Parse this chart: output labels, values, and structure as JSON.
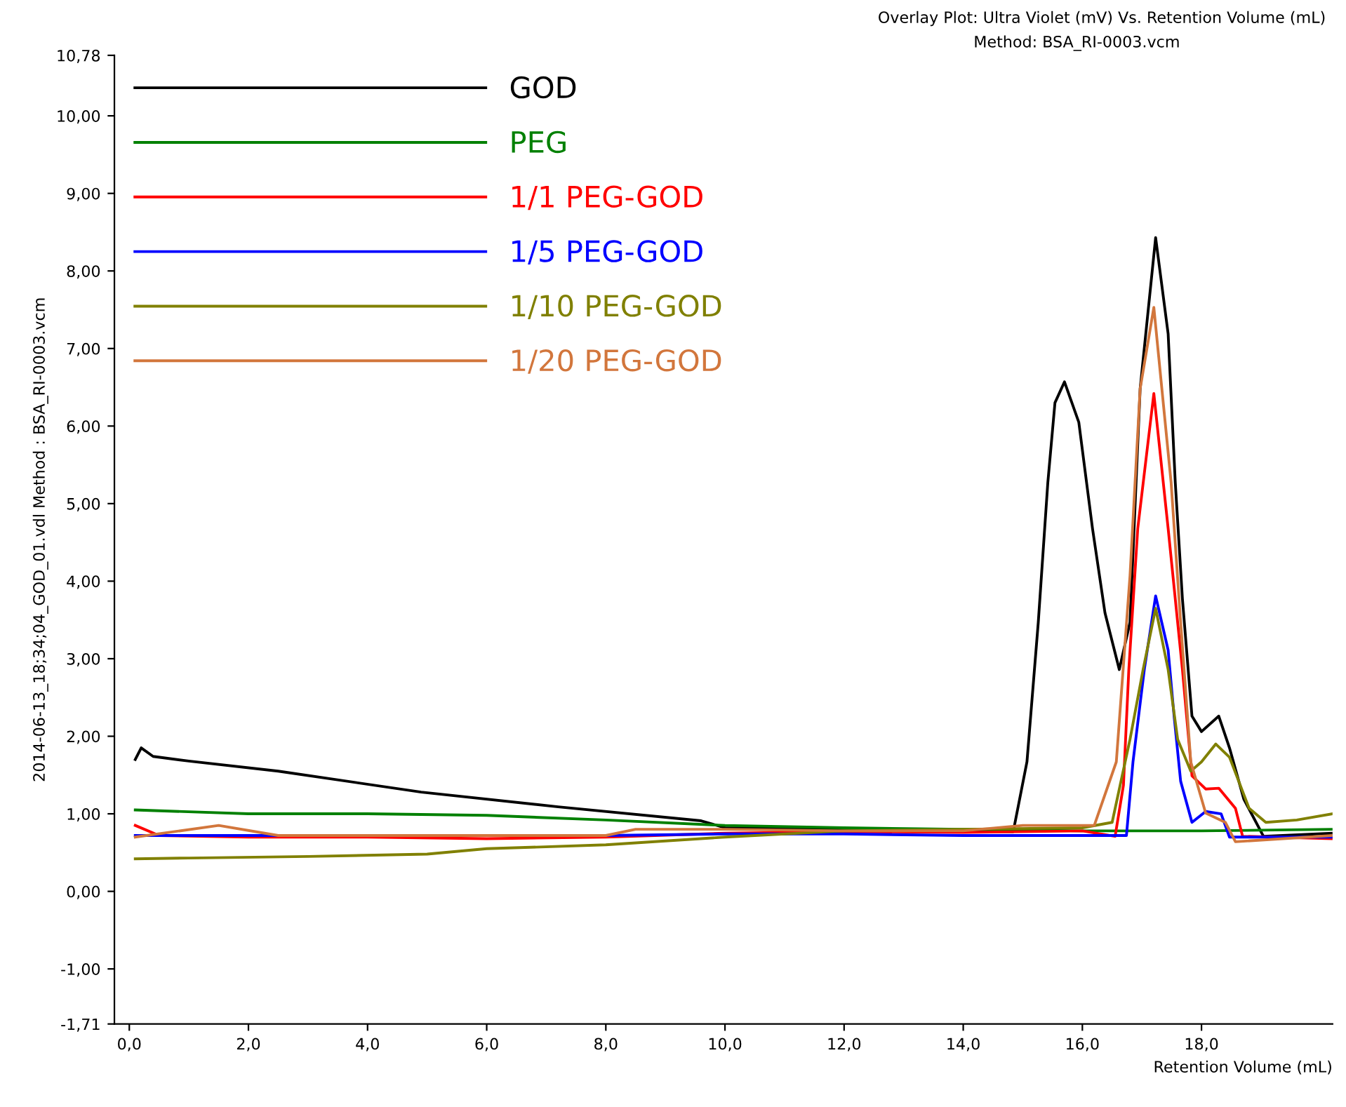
{
  "chart_data": {
    "type": "line",
    "title": "Overlay Plot: Ultra Violet (mV) Vs. Retention Volume (mL)",
    "subtitle": "Method: BSA_RI-0003.vcm",
    "xlabel": "Retention Volume (mL)",
    "ylabel": "2014-06-13_18;34;04_GOD_01.vdl Method : BSA_RI-0003.vcm",
    "xlim": [
      -0.25,
      20.2
    ],
    "ylim": [
      -1.71,
      10.78
    ],
    "xticks": [
      {
        "value": 0,
        "label": "0,0"
      },
      {
        "value": 2,
        "label": "2,0"
      },
      {
        "value": 4,
        "label": "4,0"
      },
      {
        "value": 6,
        "label": "6,0"
      },
      {
        "value": 8,
        "label": "8,0"
      },
      {
        "value": 10,
        "label": "10,0"
      },
      {
        "value": 12,
        "label": "12,0"
      },
      {
        "value": 14,
        "label": "14,0"
      },
      {
        "value": 16,
        "label": "16,0"
      },
      {
        "value": 18,
        "label": "18,0"
      }
    ],
    "yticks": [
      {
        "value": -1.71,
        "label": "-1,71"
      },
      {
        "value": -1,
        "label": "-1,00"
      },
      {
        "value": 0,
        "label": "0,00"
      },
      {
        "value": 1,
        "label": "1,00"
      },
      {
        "value": 2,
        "label": "2,00"
      },
      {
        "value": 3,
        "label": "3,00"
      },
      {
        "value": 4,
        "label": "4,00"
      },
      {
        "value": 5,
        "label": "5,00"
      },
      {
        "value": 6,
        "label": "6,00"
      },
      {
        "value": 7,
        "label": "7,00"
      },
      {
        "value": 8,
        "label": "8,00"
      },
      {
        "value": 9,
        "label": "9,00"
      },
      {
        "value": 10,
        "label": "10,00"
      },
      {
        "value": 10.78,
        "label": "10,78"
      }
    ],
    "grid": false,
    "legend": "top left",
    "marker": "none",
    "line_style": "solid",
    "series": [
      {
        "name": "GOD",
        "color": "#000000",
        "x": [
          0.1,
          0.2,
          0.4,
          1.0,
          2.5,
          4.9,
          7.2,
          9.6,
          10.0,
          12.0,
          14.84,
          15.07,
          15.26,
          15.42,
          15.54,
          15.7,
          15.94,
          16.17,
          16.38,
          16.62,
          16.8,
          16.97,
          17.23,
          17.44,
          17.56,
          17.68,
          17.84,
          18.0,
          18.29,
          18.47,
          18.71,
          19.04,
          20.2
        ],
        "values": [
          1.7,
          1.85,
          1.74,
          1.68,
          1.55,
          1.28,
          1.09,
          0.91,
          0.82,
          0.8,
          0.77,
          1.67,
          3.47,
          5.27,
          6.3,
          6.57,
          6.05,
          4.68,
          3.59,
          2.86,
          3.47,
          6.48,
          8.43,
          7.19,
          5.27,
          3.77,
          2.26,
          2.06,
          2.26,
          1.85,
          1.19,
          0.71,
          0.75
        ]
      },
      {
        "name": "PEG",
        "color": "#008000",
        "x": [
          0.1,
          2.0,
          4.0,
          6.0,
          8.0,
          10.0,
          12.0,
          14.0,
          16.0,
          18.0,
          20.2
        ],
        "values": [
          1.05,
          1.0,
          1.0,
          0.98,
          0.92,
          0.85,
          0.82,
          0.8,
          0.78,
          0.78,
          0.8
        ]
      },
      {
        "name": "1/1 PEG-GOD",
        "color": "#ff0000",
        "x": [
          0.1,
          0.5,
          2.0,
          4.0,
          6.0,
          8.0,
          10.0,
          12.0,
          14.0,
          16.0,
          16.55,
          16.69,
          16.78,
          16.93,
          17.2,
          17.44,
          17.68,
          17.84,
          18.07,
          18.29,
          18.57,
          18.69,
          20.2
        ],
        "values": [
          0.85,
          0.72,
          0.7,
          0.7,
          0.68,
          0.7,
          0.75,
          0.77,
          0.76,
          0.78,
          0.71,
          1.37,
          2.86,
          4.68,
          6.42,
          4.68,
          2.86,
          1.49,
          1.32,
          1.33,
          1.07,
          0.71,
          0.68
        ]
      },
      {
        "name": "1/5 PEG-GOD",
        "color": "#0000ff",
        "x": [
          0.1,
          2.0,
          8.0,
          10.0,
          12.0,
          14.0,
          16.0,
          16.74,
          16.85,
          17.04,
          17.23,
          17.44,
          17.54,
          17.65,
          17.84,
          18.07,
          18.33,
          18.47,
          20.2
        ],
        "values": [
          0.72,
          0.72,
          0.72,
          0.74,
          0.74,
          0.72,
          0.72,
          0.72,
          1.67,
          2.86,
          3.81,
          3.11,
          2.26,
          1.42,
          0.89,
          1.03,
          1.0,
          0.7,
          0.7
        ]
      },
      {
        "name": "1/10 PEG-GOD",
        "color": "#808000",
        "x": [
          0.1,
          1.0,
          3.0,
          5.0,
          6.0,
          8.0,
          10.0,
          12.0,
          14.0,
          16.0,
          16.5,
          16.8,
          17.02,
          17.23,
          17.44,
          17.6,
          17.82,
          18.0,
          18.24,
          18.47,
          18.8,
          19.08,
          19.6,
          20.2
        ],
        "values": [
          0.42,
          0.43,
          0.45,
          0.48,
          0.55,
          0.6,
          0.7,
          0.78,
          0.8,
          0.82,
          0.89,
          1.96,
          2.86,
          3.65,
          2.86,
          1.96,
          1.55,
          1.67,
          1.9,
          1.73,
          1.07,
          0.89,
          0.92,
          1.0
        ]
      },
      {
        "name": "1/20 PEG-GOD",
        "color": "#d2763c",
        "x": [
          0.1,
          1.5,
          2.5,
          4.0,
          6.0,
          8.0,
          8.5,
          10.0,
          12.0,
          14.0,
          15.0,
          16.2,
          16.57,
          16.8,
          16.97,
          17.2,
          17.49,
          17.65,
          17.82,
          18.07,
          18.4,
          18.57,
          20.2
        ],
        "values": [
          0.7,
          0.85,
          0.72,
          0.72,
          0.72,
          0.72,
          0.8,
          0.8,
          0.78,
          0.78,
          0.85,
          0.85,
          1.67,
          4.07,
          6.48,
          7.53,
          5.27,
          3.47,
          1.67,
          1.01,
          0.89,
          0.64,
          0.72
        ]
      }
    ]
  }
}
